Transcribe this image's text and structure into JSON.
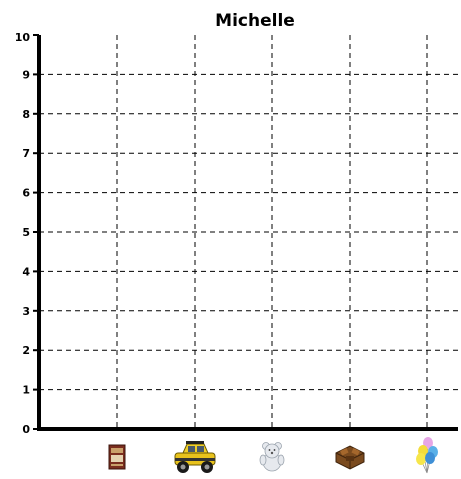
{
  "chart_data": {
    "type": "bar",
    "title": "Michelle",
    "xlabel": "",
    "ylabel": "",
    "ylim": [
      0,
      10
    ],
    "yticks": [
      0,
      1,
      2,
      3,
      4,
      5,
      6,
      7,
      8,
      9,
      10
    ],
    "grid": true,
    "categories": [
      {
        "icon": "book-icon"
      },
      {
        "icon": "toy-truck-icon"
      },
      {
        "icon": "teddy-bear-icon"
      },
      {
        "icon": "chocolate-box-icon"
      },
      {
        "icon": "balloons-icon"
      }
    ],
    "values": [
      0,
      0,
      0,
      0,
      0
    ]
  }
}
